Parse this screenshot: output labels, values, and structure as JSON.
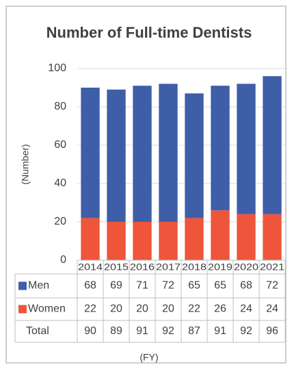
{
  "chart_data": {
    "type": "stacked_bar",
    "title": "Number of Full-time Dentists",
    "y_label": "(Number)",
    "x_label": "(FY)",
    "categories": [
      "2014",
      "2015",
      "2016",
      "2017",
      "2018",
      "2019",
      "2020",
      "2021"
    ],
    "series": [
      {
        "name": "Women",
        "color": "#ee553b",
        "values": [
          22,
          20,
          20,
          20,
          22,
          26,
          24,
          24
        ]
      },
      {
        "name": "Men",
        "color": "#3f5ea8",
        "values": [
          68,
          69,
          71,
          72,
          65,
          65,
          68,
          72
        ]
      }
    ],
    "total": {
      "name": "Total",
      "values": [
        90,
        89,
        91,
        92,
        87,
        91,
        92,
        96
      ]
    },
    "ylim": [
      0,
      100
    ],
    "yticks": [
      0,
      20,
      40,
      60,
      80,
      100
    ],
    "grid": true
  }
}
